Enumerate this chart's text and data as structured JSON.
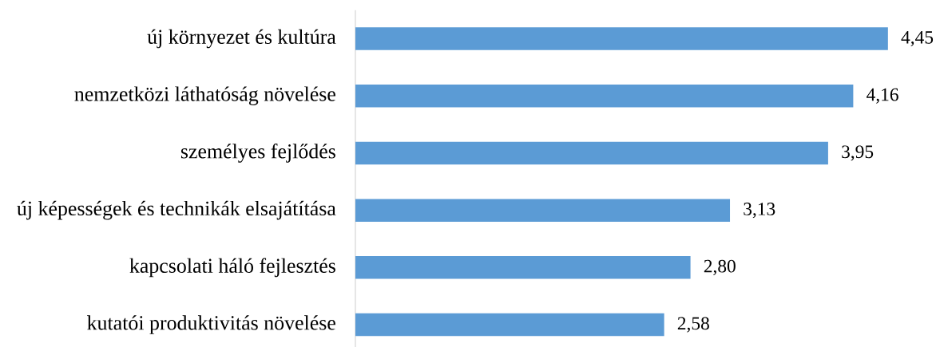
{
  "chart_data": {
    "type": "bar",
    "orientation": "horizontal",
    "categories": [
      "új környezet és kultúra",
      "nemzetközi láthatóság növelése",
      "személyes fejlődés",
      "új képességek és technikák elsajátítása",
      "kapcsolati háló fejlesztés",
      "kutatói produktivitás növelése"
    ],
    "values": [
      4.45,
      4.16,
      3.95,
      3.13,
      2.8,
      2.58
    ],
    "value_labels": [
      "4,45",
      "4,16",
      "3,95",
      "3,13",
      "2,80",
      "2,58"
    ],
    "color": "#5b9bd5"
  }
}
